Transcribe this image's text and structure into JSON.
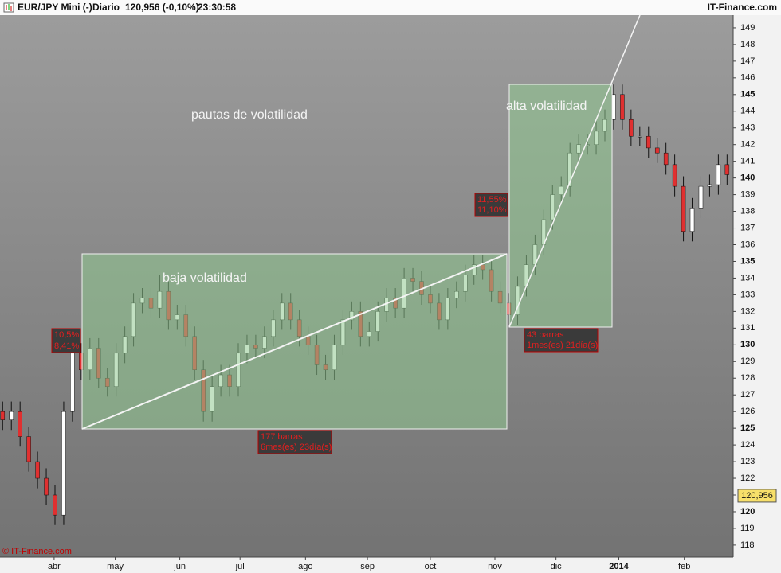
{
  "header": {
    "symbol": "EUR/JPY Mini (-)",
    "period": "Diario",
    "quote": "120,956 (-0,10%)",
    "time": "23:30:58",
    "brand": "IT-Finance.com"
  },
  "footer": {
    "copyright": "© IT-Finance.com"
  },
  "annotations": {
    "title": "pautas de volatilidad",
    "low": "baja volatilidad",
    "high": "alta volatilidad",
    "low_pct": [
      "10,5%",
      "8,41%"
    ],
    "low_span": [
      "177 barras",
      "6mes(es) 23día(s)"
    ],
    "high_pct": [
      "11,55%",
      "11,10%"
    ],
    "high_span": [
      "43 barras",
      "1mes(es) 21día(s)"
    ]
  },
  "chart_data": {
    "type": "candlestick",
    "x": [
      0,
      1,
      2,
      3,
      4,
      5,
      6,
      7,
      8,
      9,
      10,
      11,
      12,
      13,
      14,
      15,
      16,
      17,
      18,
      19,
      20,
      21,
      22,
      23,
      24,
      25,
      26,
      27,
      28,
      29,
      30,
      31,
      32,
      33,
      34,
      35,
      36,
      37,
      38,
      39,
      40,
      41,
      42,
      43,
      44,
      45,
      46,
      47,
      48,
      49,
      50,
      51,
      52,
      53,
      54,
      55,
      56,
      57,
      58,
      59,
      60,
      61,
      62,
      63,
      64,
      65,
      66,
      67,
      68,
      69,
      70,
      71,
      72,
      73,
      74,
      75,
      76,
      77,
      78,
      79,
      80,
      81,
      82,
      83
    ],
    "open": [
      126,
      125.5,
      126,
      124.5,
      123,
      122,
      121,
      119.8,
      126,
      129.5,
      128.5,
      129.8,
      128,
      127.5,
      129.5,
      130.5,
      132.5,
      132.8,
      132.2,
      133.2,
      131.5,
      131.8,
      130.5,
      128.5,
      126,
      127.5,
      128.2,
      127.5,
      129.5,
      130,
      129.8,
      130.5,
      131.5,
      132.5,
      131.5,
      130.5,
      130,
      128.8,
      128.5,
      130,
      131.5,
      132,
      130.5,
      130.8,
      132,
      132.8,
      132.2,
      134,
      133.8,
      133,
      132.5,
      131.5,
      132.8,
      133.2,
      134.2,
      134.8,
      134.5,
      133.2,
      132.5,
      131.8,
      133.5,
      134.8,
      136,
      137.5,
      139,
      139.5,
      141.5,
      142,
      142,
      142.8,
      143.5,
      145,
      143.5,
      142.5,
      142.5,
      141.8,
      141.5,
      140.8,
      139.5,
      136.8,
      138.2,
      139.5,
      139.6,
      140.8
    ],
    "high": [
      126.6,
      126.6,
      126.6,
      125.1,
      123.6,
      122.6,
      121.6,
      126.6,
      130.1,
      130.1,
      130.4,
      130.4,
      128.6,
      130.1,
      131.1,
      133.1,
      133.4,
      133.4,
      134.2,
      133.8,
      132.4,
      132.4,
      131.1,
      129.1,
      128.1,
      128.8,
      128.8,
      130.1,
      130.6,
      130.6,
      131.1,
      132.1,
      133.1,
      133.1,
      132.1,
      131.1,
      130.6,
      129.4,
      130.6,
      132.1,
      132.6,
      132.6,
      131.4,
      132.6,
      133.4,
      133.4,
      134.6,
      134.6,
      134.4,
      133.6,
      133.1,
      133.4,
      133.8,
      134.8,
      135.4,
      135.4,
      135.1,
      133.8,
      133.1,
      134.1,
      135.4,
      136.6,
      138.1,
      139.6,
      140.1,
      142.1,
      142.6,
      142.6,
      143.4,
      144.1,
      145.6,
      145.6,
      144.1,
      143.1,
      143.1,
      142.4,
      142.1,
      141.4,
      140.1,
      138.8,
      140.1,
      140.2,
      141.4,
      141.4
    ],
    "low": [
      124.9,
      124.9,
      123.9,
      122.4,
      121.4,
      120.4,
      119.2,
      119.2,
      125.4,
      127.9,
      127.9,
      127.4,
      126.9,
      126.9,
      128.9,
      129.9,
      131.9,
      131.6,
      131.6,
      130.9,
      130.9,
      129.9,
      127.9,
      125.4,
      125.4,
      126.9,
      126.9,
      126.9,
      128.9,
      129.2,
      129.2,
      129.9,
      130.9,
      130.9,
      129.9,
      129.4,
      128.2,
      127.9,
      127.9,
      129.4,
      130.9,
      129.9,
      129.9,
      130.2,
      131.4,
      131.6,
      131.6,
      133.2,
      132.4,
      131.9,
      130.9,
      130.9,
      132.2,
      132.6,
      133.6,
      133.9,
      132.6,
      131.9,
      131.2,
      131.2,
      132.9,
      134.2,
      135.4,
      136.9,
      138.4,
      138.9,
      140.9,
      141.4,
      141.4,
      142.2,
      142.9,
      142.9,
      141.9,
      141.9,
      141.2,
      140.9,
      140.2,
      138.9,
      136.2,
      136.2,
      137.6,
      138.9,
      139.0,
      139.6
    ],
    "close": [
      125.5,
      126,
      124.5,
      123,
      122,
      121,
      119.8,
      126,
      129.5,
      128.5,
      129.8,
      128,
      127.5,
      129.5,
      130.5,
      132.5,
      132.8,
      132.2,
      133.2,
      131.5,
      131.8,
      130.5,
      128.5,
      126,
      127.5,
      128.2,
      127.5,
      129.5,
      130,
      129.8,
      130.5,
      131.5,
      132.5,
      131.5,
      130.5,
      130,
      128.8,
      128.5,
      130,
      131.5,
      132,
      130.5,
      130.8,
      132,
      132.8,
      132.2,
      134,
      133.8,
      133,
      132.5,
      131.5,
      132.8,
      133.2,
      134.2,
      134.8,
      134.5,
      133.2,
      132.5,
      131.8,
      133.5,
      134.8,
      136,
      137.5,
      139,
      139.5,
      141.5,
      142,
      142,
      142.8,
      143.5,
      145,
      143.5,
      142.5,
      142.5,
      141.8,
      141.5,
      140.8,
      139.5,
      136.8,
      138.2,
      139.5,
      139.6,
      140.8,
      140.2
    ],
    "up_color": "#ffffff",
    "down_color": "#e03030",
    "wick_color": "#111111",
    "xlim": [
      -0.3,
      83.7
    ],
    "xticks": [
      {
        "value": 5.9,
        "label": "abr"
      },
      {
        "value": 12.9,
        "label": "may"
      },
      {
        "value": 20.3,
        "label": "jun"
      },
      {
        "value": 27.2,
        "label": "jul"
      },
      {
        "value": 34.7,
        "label": "ago"
      },
      {
        "value": 41.8,
        "label": "sep"
      },
      {
        "value": 49.0,
        "label": "oct"
      },
      {
        "value": 56.4,
        "label": "nov"
      },
      {
        "value": 63.4,
        "label": "dic"
      },
      {
        "value": 70.6,
        "label": "2014"
      },
      {
        "value": 78.1,
        "label": "feb"
      }
    ],
    "ylim": [
      117.28,
      149.76
    ],
    "yticks": [
      118,
      119,
      120,
      121,
      122,
      123,
      124,
      125,
      126,
      127,
      128,
      129,
      130,
      131,
      132,
      133,
      134,
      135,
      136,
      137,
      138,
      139,
      140,
      141,
      142,
      143,
      144,
      145,
      146,
      147,
      148,
      149
    ],
    "last_price": {
      "value": 120.956,
      "label": "120,956"
    }
  }
}
